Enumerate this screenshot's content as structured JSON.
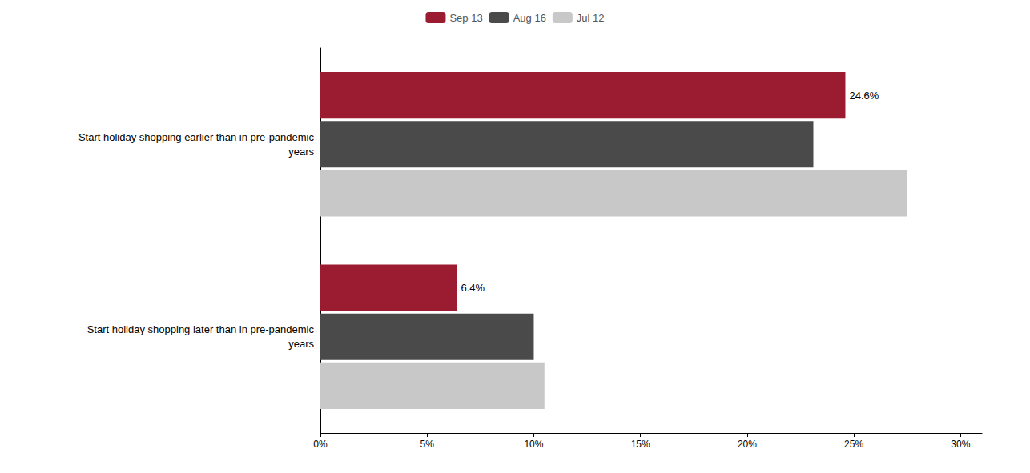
{
  "chart_data": {
    "type": "bar",
    "orientation": "horizontal",
    "categories": [
      "Start holiday shopping earlier than in pre-pandemic\nyears",
      "Start holiday shopping later than in pre-pandemic\nyears"
    ],
    "series": [
      {
        "name": "Sep 13",
        "color": "#9B1B30",
        "values": [
          24.6,
          6.4
        ],
        "value_labels": [
          "24.6%",
          "6.4%"
        ]
      },
      {
        "name": "Aug 16",
        "color": "#4A4A4A",
        "values": [
          23.1,
          10.0
        ]
      },
      {
        "name": "Jul 12",
        "color": "#C8C8C8",
        "values": [
          27.5,
          10.5
        ]
      }
    ],
    "xlim": [
      0,
      31
    ],
    "xticks": [
      {
        "value": 0,
        "label": "0%"
      },
      {
        "value": 5,
        "label": "5%"
      },
      {
        "value": 10,
        "label": "10%"
      },
      {
        "value": 15,
        "label": "15%"
      },
      {
        "value": 20,
        "label": "20%"
      },
      {
        "value": 25,
        "label": "25%"
      },
      {
        "value": 30,
        "label": "30%"
      }
    ],
    "grid": false,
    "legend": "top"
  }
}
